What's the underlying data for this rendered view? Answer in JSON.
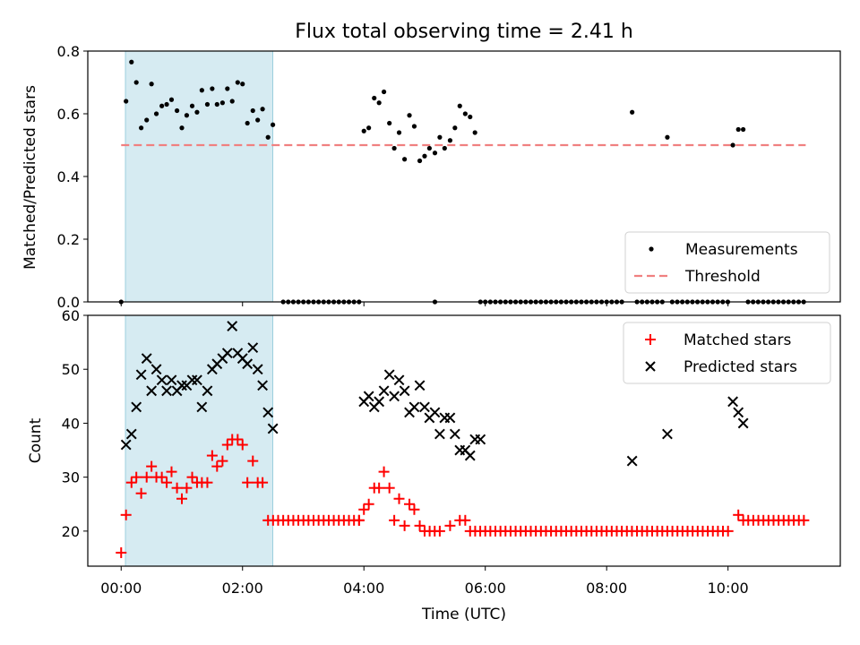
{
  "chart_data": [
    {
      "type": "scatter",
      "title": "Flux total observing time = 2.41 h",
      "xlabel": "",
      "ylabel": "Matched/Predicted stars",
      "xlim_hours": [
        -0.55,
        11.85
      ],
      "ylim": [
        0,
        0.8
      ],
      "yticks": [
        0.0,
        0.2,
        0.4,
        0.6,
        0.8
      ],
      "ytick_labels": [
        "0.0",
        "0.2",
        "0.4",
        "0.6",
        "0.8"
      ],
      "legend": [
        "Measurements",
        "Threshold"
      ],
      "legend_position": "lower-right",
      "threshold": 0.5,
      "threshold_x_hours": [
        0.0,
        11.28
      ],
      "shaded_span_hours": [
        0.07,
        2.5
      ],
      "measurements": {
        "x": [
          0.0,
          0.08,
          0.17,
          0.25,
          0.33,
          0.42,
          0.5,
          0.58,
          0.67,
          0.75,
          0.83,
          0.92,
          1.0,
          1.08,
          1.17,
          1.25,
          1.33,
          1.42,
          1.5,
          1.58,
          1.67,
          1.75,
          1.83,
          1.92,
          2.0,
          2.08,
          2.17,
          2.25,
          2.33,
          2.42,
          2.5,
          4.0,
          4.08,
          4.17,
          4.25,
          4.33,
          4.42,
          4.5,
          4.58,
          4.67,
          4.75,
          4.83,
          4.92,
          5.0,
          5.08,
          5.17,
          5.25,
          5.33,
          5.42,
          5.5,
          5.58,
          5.67,
          5.75,
          5.83,
          5.92,
          8.42,
          9.0,
          10.08,
          10.17,
          10.25
        ],
        "y": [
          0.0,
          0.64,
          0.765,
          0.7,
          0.555,
          0.58,
          0.695,
          0.6,
          0.625,
          0.63,
          0.645,
          0.61,
          0.555,
          0.595,
          0.625,
          0.605,
          0.675,
          0.63,
          0.68,
          0.63,
          0.635,
          0.68,
          0.64,
          0.7,
          0.695,
          0.57,
          0.61,
          0.58,
          0.615,
          0.525,
          0.565,
          0.545,
          0.555,
          0.65,
          0.635,
          0.67,
          0.57,
          0.49,
          0.54,
          0.455,
          0.595,
          0.56,
          0.45,
          0.465,
          0.49,
          0.475,
          0.525,
          0.49,
          0.515,
          0.555,
          0.625,
          0.6,
          0.59,
          0.54,
          0.0,
          0.605,
          0.525,
          0.5,
          0.55,
          0.55
        ]
      },
      "zero_measurements_x_ranges": [
        [
          2.67,
          4.0
        ],
        [
          5.17,
          5.17
        ],
        [
          6.0,
          8.33
        ],
        [
          8.5,
          8.92
        ],
        [
          9.08,
          10.0
        ],
        [
          10.33,
          11.25
        ]
      ]
    },
    {
      "type": "scatter",
      "title": "",
      "xlabel": "Time (UTC)",
      "ylabel": "Count",
      "xlim_hours": [
        -0.55,
        11.85
      ],
      "ylim": [
        13.5,
        60
      ],
      "yticks": [
        20,
        30,
        40,
        50,
        60
      ],
      "ytick_labels": [
        "20",
        "30",
        "40",
        "50",
        "60"
      ],
      "xticks_hours": [
        0,
        2,
        4,
        6,
        8,
        10
      ],
      "xtick_labels": [
        "00:00",
        "02:00",
        "04:00",
        "06:00",
        "08:00",
        "10:00"
      ],
      "legend": [
        "Matched stars",
        "Predicted stars"
      ],
      "legend_position": "upper-right",
      "shaded_span_hours": [
        0.07,
        2.5
      ],
      "matched_stars": {
        "x": [
          0.0,
          0.08,
          0.17,
          0.25,
          0.33,
          0.42,
          0.5,
          0.58,
          0.67,
          0.75,
          0.83,
          0.92,
          1.0,
          1.08,
          1.17,
          1.25,
          1.33,
          1.42,
          1.5,
          1.58,
          1.67,
          1.75,
          1.83,
          1.92,
          2.0,
          2.08,
          2.17,
          2.25,
          2.33,
          3.92,
          4.0,
          4.08,
          4.17,
          4.25,
          4.33,
          4.42,
          4.5,
          4.58,
          4.67,
          4.75,
          4.83,
          4.92,
          5.42,
          5.58,
          5.67,
          10.17
        ],
        "y": [
          16,
          23,
          29,
          30,
          27,
          30,
          32,
          30,
          30,
          29,
          31,
          28,
          26,
          28,
          30,
          29,
          29,
          29,
          34,
          32,
          33,
          36,
          37,
          37,
          36,
          29,
          33,
          29,
          29,
          22,
          24,
          25,
          28,
          28,
          31,
          28,
          22,
          26,
          21,
          25,
          24,
          21,
          21,
          22,
          22,
          23
        ]
      },
      "matched_baseline": [
        {
          "from_hours": 2.42,
          "to_hours": 3.92,
          "value": 22
        },
        {
          "from_hours": 5.0,
          "to_hours": 5.33,
          "value": 20
        },
        {
          "from_hours": 5.75,
          "to_hours": 10.08,
          "value": 20
        },
        {
          "from_hours": 10.25,
          "to_hours": 11.25,
          "value": 22
        }
      ],
      "predicted_stars": {
        "x": [
          0.08,
          0.17,
          0.25,
          0.33,
          0.42,
          0.5,
          0.58,
          0.67,
          0.75,
          0.83,
          0.92,
          1.0,
          1.08,
          1.17,
          1.25,
          1.33,
          1.42,
          1.5,
          1.58,
          1.67,
          1.75,
          1.83,
          1.92,
          2.0,
          2.08,
          2.17,
          2.25,
          2.33,
          2.42,
          2.5,
          4.0,
          4.08,
          4.17,
          4.25,
          4.33,
          4.42,
          4.5,
          4.58,
          4.67,
          4.75,
          4.83,
          4.92,
          5.0,
          5.08,
          5.17,
          5.25,
          5.33,
          5.42,
          5.5,
          5.58,
          5.67,
          5.75,
          5.83,
          5.92,
          8.42,
          9.0,
          10.08,
          10.17,
          10.25
        ],
        "y": [
          36,
          38,
          43,
          49,
          52,
          46,
          50,
          48,
          46,
          48,
          46,
          47,
          47,
          48,
          48,
          43,
          46,
          50,
          51,
          52,
          53,
          58,
          53,
          52,
          51,
          54,
          50,
          47,
          42,
          39,
          44,
          45,
          43,
          44,
          46,
          49,
          45,
          48,
          46,
          42,
          43,
          47,
          43,
          41,
          42,
          38,
          41,
          41,
          38,
          35,
          35,
          34,
          37,
          37,
          33,
          38,
          44,
          42,
          40
        ]
      }
    }
  ]
}
